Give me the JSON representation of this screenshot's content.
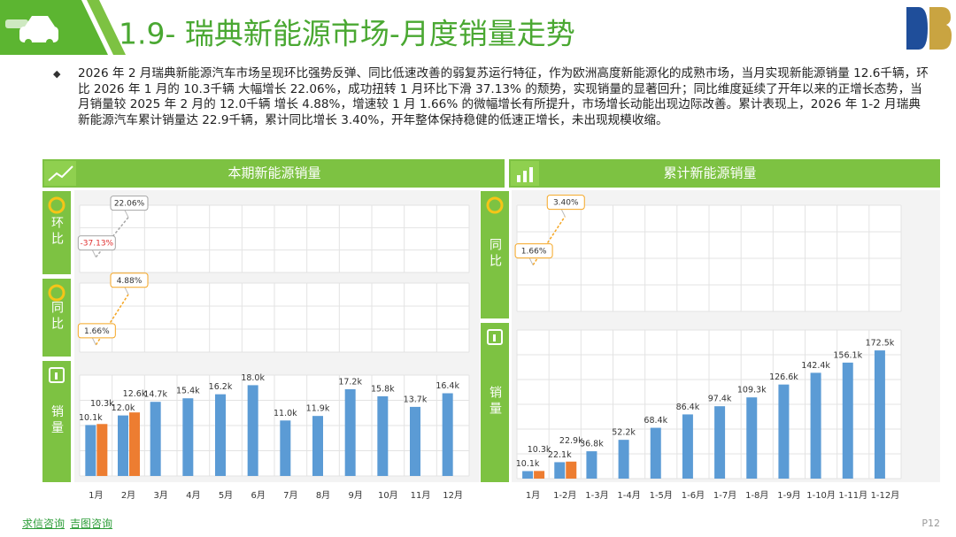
{
  "header": {
    "title": "1.9- 瑞典新能源市场-月度销量走势"
  },
  "summary": "2026 年 2 月瑞典新能源汽车市场呈现环比强势反弹、同比低速改善的弱复苏运行特征，作为欧洲高度新能源化的成熟市场，当月实现新能源销量 12.6千辆，环比 2026 年 1 月的 10.3千辆 大幅增长 22.06%，成功扭转 1 月环比下滑 37.13% 的颓势，实现销量的显著回升；同比维度延续了开年以来的正增长态势，当月销量较 2025 年 2 月的 12.0千辆 增长 4.88%，增速较 1 月 1.66% 的微幅增长有所提升，市场增长动能出现边际改善。累计表现上，2026 年 1-2 月瑞典新能源汽车累计销量达 22.9千辆，累计同比增长 3.40%，开年整体保持稳健的低速正增长，未出现规模收缩。",
  "panels": [
    {
      "title": "本期新能源销量"
    },
    {
      "title": "累计新能源销量"
    }
  ],
  "chart_data": [
    {
      "type": "line",
      "label": "环比",
      "color": "#a6a6a6",
      "negative_color": "#e03030",
      "grid": true,
      "ylim": [
        -60,
        40
      ],
      "values": [
        -37.13,
        22.06,
        null,
        null,
        null,
        null,
        null,
        null,
        null,
        null,
        null,
        null
      ],
      "value_labels": [
        "-37.13%",
        "22.06%",
        null,
        null,
        null,
        null,
        null,
        null,
        null,
        null,
        null,
        null
      ]
    },
    {
      "type": "line",
      "label": "同比",
      "color": "#f5a623",
      "grid": true,
      "ylim": [
        1.2,
        5.6
      ],
      "values": [
        1.66,
        4.88,
        null,
        null,
        null,
        null,
        null,
        null,
        null,
        null,
        null,
        null
      ],
      "value_labels": [
        "1.66%",
        "4.88%",
        null,
        null,
        null,
        null,
        null,
        null,
        null,
        null,
        null,
        null
      ]
    },
    {
      "type": "bar",
      "label": "销量",
      "grid": true,
      "ylim": [
        0,
        20
      ],
      "categories": [
        "1月",
        "2月",
        "3月",
        "4月",
        "5月",
        "6月",
        "7月",
        "8月",
        "9月",
        "10月",
        "11月",
        "12月"
      ],
      "series": [
        {
          "color": "#5b9bd5",
          "values": [
            10.1,
            12.0,
            14.7,
            15.4,
            16.2,
            18.0,
            11.0,
            11.9,
            17.2,
            15.8,
            13.7,
            16.4
          ],
          "value_labels": [
            "10.1k",
            "12.0k",
            "14.7k",
            "15.4k",
            "16.2k",
            "18.0k",
            "11.0k",
            "11.9k",
            "17.2k",
            "15.8k",
            "13.7k",
            "16.4k"
          ]
        },
        {
          "color": "#ed7d31",
          "values": [
            10.3,
            12.6,
            null,
            null,
            null,
            null,
            null,
            null,
            null,
            null,
            null,
            null
          ],
          "value_labels": [
            "10.3k",
            "12.6k",
            null,
            null,
            null,
            null,
            null,
            null,
            null,
            null,
            null,
            null
          ]
        }
      ]
    },
    {
      "type": "line",
      "label": "同比",
      "color": "#f5a623",
      "grid": true,
      "ylim": [
        0,
        3.8
      ],
      "values": [
        1.66,
        3.4,
        null,
        null,
        null,
        null,
        null,
        null,
        null,
        null,
        null,
        null
      ],
      "value_labels": [
        "1.66%",
        "3.40%",
        null,
        null,
        null,
        null,
        null,
        null,
        null,
        null,
        null,
        null
      ]
    },
    {
      "type": "bar",
      "label": "销量",
      "grid": true,
      "ylim": [
        0,
        200
      ],
      "categories": [
        "1月",
        "1-2月",
        "1-3月",
        "1-4月",
        "1-5月",
        "1-6月",
        "1-7月",
        "1-8月",
        "1-9月",
        "1-10月",
        "1-11月",
        "1-12月"
      ],
      "series": [
        {
          "color": "#5b9bd5",
          "values": [
            10.1,
            22.1,
            36.8,
            52.2,
            68.4,
            86.4,
            97.4,
            109.3,
            126.6,
            142.4,
            156.1,
            172.5
          ],
          "value_labels": [
            "10.1k",
            "22.1k",
            "36.8k",
            "52.2k",
            "68.4k",
            "86.4k",
            "97.4k",
            "109.3k",
            "126.6k",
            "142.4k",
            "156.1k",
            "172.5k"
          ]
        },
        {
          "color": "#ed7d31",
          "values": [
            10.3,
            22.9,
            null,
            null,
            null,
            null,
            null,
            null,
            null,
            null,
            null,
            null
          ],
          "value_labels": [
            "10.3k",
            "22.9k",
            null,
            null,
            null,
            null,
            null,
            null,
            null,
            null,
            null,
            null
          ]
        }
      ]
    }
  ],
  "footer": {
    "links": [
      "求信咨询",
      "吉图咨询"
    ],
    "page": "P12"
  }
}
